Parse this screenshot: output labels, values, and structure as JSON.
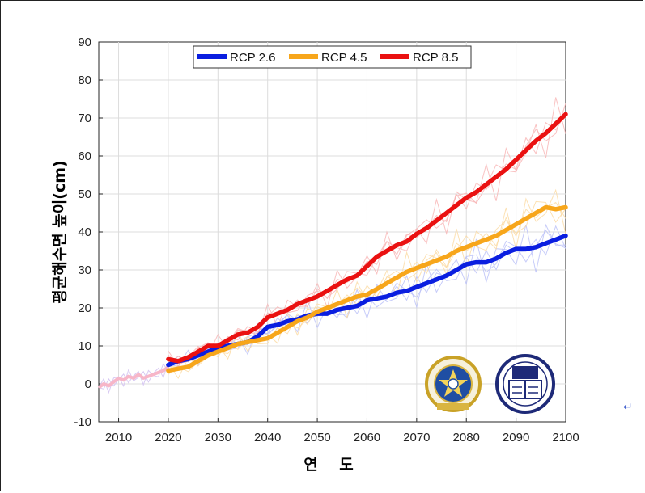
{
  "chart_data": {
    "type": "line",
    "title": "",
    "xlabel": "연 도",
    "ylabel": "평균해수면 높이(cm)",
    "xlim": [
      2006,
      2100
    ],
    "ylim": [
      -10,
      90
    ],
    "xticks": [
      2010,
      2020,
      2030,
      2040,
      2050,
      2060,
      2070,
      2080,
      2090,
      2100
    ],
    "yticks": [
      -10,
      0,
      10,
      20,
      30,
      40,
      50,
      60,
      70,
      80,
      90
    ],
    "grid": true,
    "legend_position": "top-center",
    "historical": {
      "x": [
        2006,
        2007,
        2008,
        2009,
        2010,
        2011,
        2012,
        2013,
        2014,
        2015,
        2016,
        2017,
        2018,
        2019,
        2020
      ],
      "values": [
        -1,
        0,
        -0.5,
        0.5,
        1.5,
        1,
        2,
        1.5,
        2.5,
        1.5,
        2,
        2.5,
        3,
        3.5,
        4.5
      ],
      "color": "#f7b6c8"
    },
    "series": [
      {
        "name": "RCP 2.6",
        "color": "#0a1ee0",
        "x": [
          2020,
          2022,
          2024,
          2026,
          2028,
          2030,
          2032,
          2034,
          2036,
          2038,
          2040,
          2042,
          2044,
          2046,
          2048,
          2050,
          2052,
          2054,
          2056,
          2058,
          2060,
          2062,
          2064,
          2066,
          2068,
          2070,
          2072,
          2074,
          2076,
          2078,
          2080,
          2082,
          2084,
          2086,
          2088,
          2090,
          2092,
          2094,
          2096,
          2098,
          2100
        ],
        "values": [
          5,
          6,
          6.5,
          7.5,
          8.5,
          9.5,
          10,
          10.5,
          11,
          12.5,
          15,
          15.5,
          16.5,
          17,
          18,
          18.5,
          18.5,
          19.5,
          20,
          20.5,
          22,
          22.5,
          23,
          24,
          24.5,
          25.5,
          26.5,
          27.5,
          28.5,
          30,
          31.5,
          32,
          32,
          33,
          34.5,
          35.5,
          35.5,
          36,
          37,
          38,
          39
        ]
      },
      {
        "name": "RCP 4.5",
        "color": "#f7a61b",
        "x": [
          2020,
          2022,
          2024,
          2026,
          2028,
          2030,
          2032,
          2034,
          2036,
          2038,
          2040,
          2042,
          2044,
          2046,
          2048,
          2050,
          2052,
          2054,
          2056,
          2058,
          2060,
          2062,
          2064,
          2066,
          2068,
          2070,
          2072,
          2074,
          2076,
          2078,
          2080,
          2082,
          2084,
          2086,
          2088,
          2090,
          2092,
          2094,
          2096,
          2098,
          2100
        ],
        "values": [
          3.5,
          4,
          4.5,
          6,
          7.5,
          8.5,
          9.5,
          10.5,
          11,
          11.5,
          12,
          13.5,
          15,
          16.5,
          17.5,
          19,
          20,
          21,
          22,
          23,
          23.5,
          25,
          26.5,
          28,
          29.5,
          30.5,
          31.5,
          32.5,
          33.5,
          35,
          36,
          37,
          38,
          39,
          40.5,
          42,
          43.5,
          45,
          46.5,
          46,
          46.5
        ]
      },
      {
        "name": "RCP 8.5",
        "color": "#ea1111",
        "x": [
          2020,
          2022,
          2024,
          2026,
          2028,
          2030,
          2032,
          2034,
          2036,
          2038,
          2040,
          2042,
          2044,
          2046,
          2048,
          2050,
          2052,
          2054,
          2056,
          2058,
          2060,
          2062,
          2064,
          2066,
          2068,
          2070,
          2072,
          2074,
          2076,
          2078,
          2080,
          2082,
          2084,
          2086,
          2088,
          2090,
          2092,
          2094,
          2096,
          2098,
          2100
        ],
        "values": [
          6.5,
          6,
          7,
          8.5,
          10,
          10,
          11.5,
          13,
          13.5,
          15,
          17.5,
          18.5,
          19.5,
          21,
          22,
          23,
          24.5,
          26,
          27.5,
          28.5,
          31,
          33.5,
          35,
          36.5,
          37.5,
          39.5,
          41,
          43,
          45,
          47,
          49,
          50.5,
          52.5,
          54.5,
          56.5,
          59,
          61.5,
          64,
          66,
          68.5,
          71
        ]
      }
    ]
  }
}
